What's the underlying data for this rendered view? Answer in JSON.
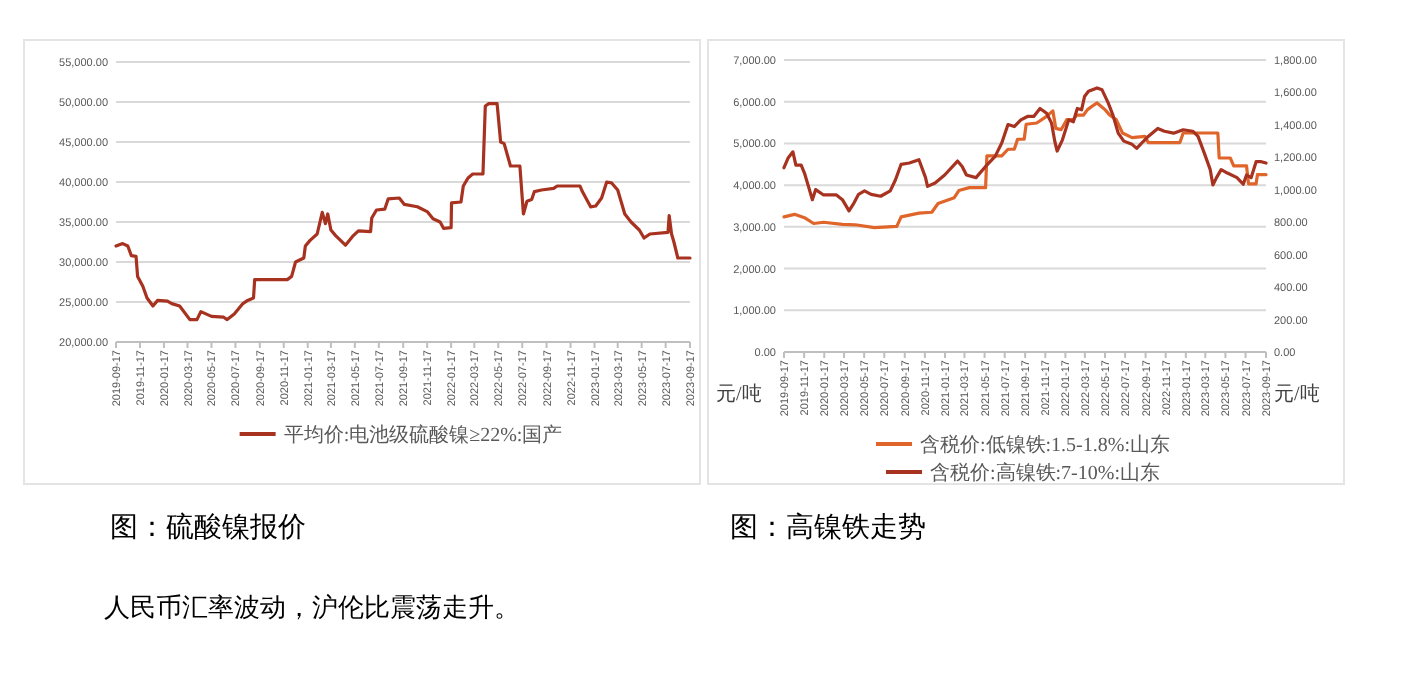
{
  "chart_data": [
    {
      "type": "line",
      "title": "图：硫酸镍报价",
      "annotations": [
        "人民币汇率波动，沪伦比震荡走升。"
      ],
      "legend": "bottom",
      "grid": "y",
      "xlim": [
        "2019-09-17",
        "2023-09-17"
      ],
      "xticks": [
        "2019-09-17",
        "2019-11-17",
        "2020-01-17",
        "2020-03-17",
        "2020-05-17",
        "2020-07-17",
        "2020-09-17",
        "2020-11-17",
        "2021-01-17",
        "2021-03-17",
        "2021-05-17",
        "2021-07-17",
        "2021-09-17",
        "2021-11-17",
        "2022-01-17",
        "2022-03-17",
        "2022-05-17",
        "2022-07-17",
        "2022-09-17",
        "2022-11-17",
        "2023-01-17",
        "2023-03-17",
        "2023-05-17",
        "2023-07-17",
        "2023-09-17"
      ],
      "ylim": [
        20000,
        55000
      ],
      "yticks": [
        {
          "value": 20000,
          "label": "20,000.00"
        },
        {
          "value": 25000,
          "label": "25,000.00"
        },
        {
          "value": 30000,
          "label": "30,000.00"
        },
        {
          "value": 35000,
          "label": "35,000.00"
        },
        {
          "value": 40000,
          "label": "40,000.00"
        },
        {
          "value": 45000,
          "label": "45,000.00"
        },
        {
          "value": 50000,
          "label": "50,000.00"
        },
        {
          "value": 55000,
          "label": "55,000.00"
        }
      ],
      "series": [
        {
          "name": "平均价:电池级硫酸镍≥22%:国产",
          "color": "#a83220",
          "x": [
            "2019-09-17",
            "2019-10-04",
            "2019-10-17",
            "2019-10-26",
            "2019-11-07",
            "2019-11-11",
            "2019-11-24",
            "2019-12-05",
            "2019-12-20",
            "2020-01-01",
            "2020-01-26",
            "2020-02-06",
            "2020-02-26",
            "2020-03-23",
            "2020-04-10",
            "2020-04-20",
            "2020-05-17",
            "2020-06-17",
            "2020-06-26",
            "2020-07-14",
            "2020-08-05",
            "2020-08-17",
            "2020-09-01",
            "2020-09-04",
            "2020-11-26",
            "2020-12-07",
            "2020-12-17",
            "2021-01-07",
            "2021-01-11",
            "2021-01-23",
            "2021-02-10",
            "2021-02-23",
            "2021-03-03",
            "2021-03-09",
            "2021-03-17",
            "2021-03-29",
            "2021-04-23",
            "2021-05-11",
            "2021-05-26",
            "2021-06-26",
            "2021-06-29",
            "2021-07-11",
            "2021-08-01",
            "2021-08-10",
            "2021-09-07",
            "2021-09-20",
            "2021-10-23",
            "2021-11-17",
            "2021-12-02",
            "2021-12-20",
            "2021-12-29",
            "2022-01-17",
            "2022-01-18",
            "2022-02-11",
            "2022-02-17",
            "2022-03-01",
            "2022-03-13",
            "2022-04-08",
            "2022-04-14",
            "2022-04-23",
            "2022-05-14",
            "2022-05-23",
            "2022-06-01",
            "2022-06-17",
            "2022-07-11",
            "2022-07-20",
            "2022-07-29",
            "2022-08-10",
            "2022-08-17",
            "2022-09-04",
            "2022-10-05",
            "2022-10-14",
            "2022-12-11",
            "2022-12-17",
            "2023-01-07",
            "2023-01-20",
            "2023-02-04",
            "2023-02-17",
            "2023-03-01",
            "2023-03-17",
            "2023-04-04",
            "2023-04-20",
            "2023-05-11",
            "2023-05-23",
            "2023-06-07",
            "2023-07-23",
            "2023-07-26",
            "2023-08-01",
            "2023-08-07",
            "2023-08-17",
            "2023-09-17"
          ],
          "values": [
            32000,
            32300,
            32000,
            30800,
            30700,
            28200,
            27000,
            25500,
            24500,
            25200,
            25100,
            24800,
            24500,
            22800,
            22800,
            23800,
            23200,
            23100,
            22800,
            23500,
            24800,
            25200,
            25500,
            27800,
            27800,
            28200,
            30000,
            30500,
            32000,
            32700,
            33500,
            36200,
            34800,
            36000,
            34000,
            33300,
            32100,
            33200,
            33900,
            33800,
            35500,
            36500,
            36600,
            37900,
            38000,
            37200,
            36900,
            36300,
            35400,
            35000,
            34200,
            34300,
            37400,
            37500,
            39500,
            40500,
            41000,
            41000,
            49500,
            49800,
            49800,
            45000,
            44800,
            42000,
            42000,
            36000,
            37600,
            37800,
            38800,
            39000,
            39200,
            39500,
            39500,
            38800,
            36900,
            37000,
            38000,
            40000,
            39900,
            39000,
            36000,
            35000,
            34000,
            33000,
            33500,
            33700,
            35800,
            33500,
            32500,
            30500,
            30500
          ]
        }
      ]
    },
    {
      "type": "line",
      "title": "图：高镍铁走势",
      "ylabel": "元/吨",
      "y2label": "元/吨",
      "legend": "bottom",
      "grid": "y",
      "xlim": [
        "2019-09-17",
        "2023-09-17"
      ],
      "xticks": [
        "2019-09-17",
        "2019-11-17",
        "2020-01-17",
        "2020-03-17",
        "2020-05-17",
        "2020-07-17",
        "2020-09-17",
        "2020-11-17",
        "2021-01-17",
        "2021-03-17",
        "2021-05-17",
        "2021-07-17",
        "2021-09-17",
        "2021-11-17",
        "2022-01-17",
        "2022-03-17",
        "2022-05-17",
        "2022-07-17",
        "2022-09-17",
        "2022-11-17",
        "2023-01-17",
        "2023-03-17",
        "2023-05-17",
        "2023-07-17",
        "2023-09-17"
      ],
      "ylim": [
        0,
        7000
      ],
      "yticks": [
        {
          "value": 0,
          "label": "0.00"
        },
        {
          "value": 1000,
          "label": "1,000.00"
        },
        {
          "value": 2000,
          "label": "2,000.00"
        },
        {
          "value": 3000,
          "label": "3,000.00"
        },
        {
          "value": 4000,
          "label": "4,000.00"
        },
        {
          "value": 5000,
          "label": "5,000.00"
        },
        {
          "value": 6000,
          "label": "6,000.00"
        },
        {
          "value": 7000,
          "label": "7,000.00"
        }
      ],
      "y2lim": [
        0,
        1800
      ],
      "y2ticks": [
        {
          "value": 0,
          "label": "0.00"
        },
        {
          "value": 200,
          "label": "200.00"
        },
        {
          "value": 400,
          "label": "400.00"
        },
        {
          "value": 600,
          "label": "600.00"
        },
        {
          "value": 800,
          "label": "800.00"
        },
        {
          "value": 1000,
          "label": "1,000.00"
        },
        {
          "value": 1200,
          "label": "1,200.00"
        },
        {
          "value": 1400,
          "label": "1,400.00"
        },
        {
          "value": 1600,
          "label": "1,600.00"
        },
        {
          "value": 1800,
          "label": "1,800.00"
        }
      ],
      "series": [
        {
          "name": "含税价:低镍铁:1.5-1.8%:山东",
          "color": "#e0652a",
          "x": [
            "2019-09-17",
            "2019-10-19",
            "2019-11-18",
            "2019-12-16",
            "2020-01-15",
            "2020-03-12",
            "2020-04-20",
            "2020-06-17",
            "2020-08-24",
            "2020-09-06",
            "2020-10-30",
            "2020-12-08",
            "2020-12-27",
            "2021-02-14",
            "2021-02-28",
            "2021-04-01",
            "2021-05-20",
            "2021-05-24",
            "2021-07-08",
            "2021-07-27",
            "2021-08-15",
            "2021-08-25",
            "2021-09-14",
            "2021-09-20",
            "2021-10-22",
            "2021-11-21",
            "2021-12-10",
            "2021-12-19",
            "2022-01-04",
            "2022-01-21",
            "2022-02-10",
            "2022-02-20",
            "2022-03-13",
            "2022-03-25",
            "2022-04-13",
            "2022-04-23",
            "2022-05-17",
            "2022-05-31",
            "2022-06-20",
            "2022-07-09",
            "2022-08-07",
            "2022-09-15",
            "2022-09-25",
            "2022-12-30",
            "2023-01-09",
            "2023-04-24",
            "2023-04-28",
            "2023-06-01",
            "2023-06-11",
            "2023-07-20",
            "2023-07-26",
            "2023-08-18",
            "2023-08-22",
            "2023-09-17"
          ],
          "values": [
            3240,
            3300,
            3220,
            3080,
            3110,
            3060,
            3050,
            2980,
            3010,
            3240,
            3330,
            3350,
            3560,
            3700,
            3870,
            3940,
            3940,
            4700,
            4700,
            4860,
            4860,
            5100,
            5100,
            5460,
            5490,
            5650,
            5780,
            5360,
            5330,
            5570,
            5570,
            5680,
            5680,
            5810,
            5920,
            5970,
            5810,
            5680,
            5570,
            5250,
            5140,
            5170,
            5020,
            5020,
            5250,
            5250,
            4650,
            4650,
            4460,
            4460,
            4030,
            4030,
            4250,
            4250
          ]
        },
        {
          "name": "含税价:高镍铁:7-10%:山东",
          "color": "#a83220",
          "axis": "y2",
          "x": [
            "2019-09-17",
            "2019-09-30",
            "2019-10-14",
            "2019-10-23",
            "2019-11-08",
            "2019-11-18",
            "2019-12-03",
            "2019-12-12",
            "2019-12-22",
            "2020-01-15",
            "2020-02-23",
            "2020-03-12",
            "2020-04-01",
            "2020-04-14",
            "2020-04-30",
            "2020-05-18",
            "2020-06-07",
            "2020-07-06",
            "2020-08-04",
            "2020-08-20",
            "2020-09-06",
            "2020-10-01",
            "2020-10-30",
            "2020-11-19",
            "2020-11-25",
            "2020-12-18",
            "2021-01-16",
            "2021-02-24",
            "2021-03-10",
            "2021-03-23",
            "2021-04-21",
            "2021-05-20",
            "2021-06-18",
            "2021-07-08",
            "2021-07-27",
            "2021-08-15",
            "2021-09-04",
            "2021-09-24",
            "2021-10-13",
            "2021-11-01",
            "2021-11-21",
            "2021-12-06",
            "2021-12-16",
            "2021-12-23",
            "2022-01-08",
            "2022-01-27",
            "2022-02-10",
            "2022-02-22",
            "2022-03-07",
            "2022-03-16",
            "2022-03-28",
            "2022-04-23",
            "2022-05-08",
            "2022-05-27",
            "2022-06-10",
            "2022-06-26",
            "2022-07-13",
            "2022-08-07",
            "2022-08-21",
            "2022-09-09",
            "2022-09-25",
            "2022-10-24",
            "2022-11-13",
            "2022-12-11",
            "2023-01-09",
            "2023-02-07",
            "2023-02-23",
            "2023-03-14",
            "2023-04-01",
            "2023-04-09",
            "2023-04-20",
            "2023-05-04",
            "2023-05-23",
            "2023-06-21",
            "2023-07-10",
            "2023-07-20",
            "2023-08-03",
            "2023-08-18",
            "2023-09-03",
            "2023-09-17"
          ],
          "values": [
            1136,
            1198,
            1234,
            1152,
            1152,
            1103,
            1001,
            939,
            1001,
            968,
            968,
            939,
            870,
            911,
            972,
            993,
            972,
            960,
            993,
            1062,
            1157,
            1165,
            1185,
            1075,
            1021,
            1042,
            1091,
            1177,
            1144,
            1091,
            1075,
            1144,
            1206,
            1288,
            1402,
            1390,
            1431,
            1452,
            1452,
            1501,
            1472,
            1411,
            1296,
            1239,
            1308,
            1431,
            1419,
            1501,
            1493,
            1575,
            1607,
            1628,
            1616,
            1534,
            1460,
            1349,
            1300,
            1280,
            1255,
            1296,
            1329,
            1378,
            1361,
            1349,
            1370,
            1361,
            1329,
            1226,
            1124,
            1030,
            1075,
            1124,
            1103,
            1075,
            1034,
            1091,
            1075,
            1173,
            1173,
            1165
          ]
        }
      ]
    }
  ]
}
